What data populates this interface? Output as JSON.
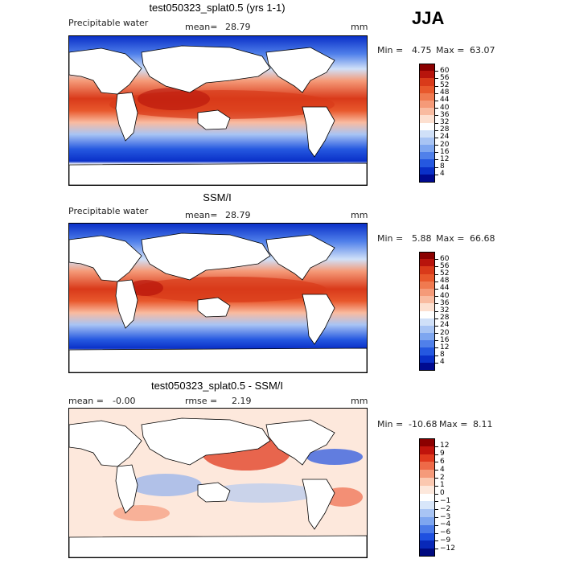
{
  "season": "JJA",
  "panels": [
    {
      "title": "test050323_splat0.5 (yrs 1-1)",
      "variable": "Precipitable water",
      "stat_label": "mean=",
      "stat_value": "28.79",
      "units": "mm",
      "min_label": "Min =",
      "min_value": "4.75",
      "max_label": "Max =",
      "max_value": "63.07",
      "colorbar": {
        "labels": [
          "60",
          "56",
          "52",
          "48",
          "44",
          "40",
          "36",
          "32",
          "28",
          "24",
          "20",
          "16",
          "12",
          "8",
          "4"
        ],
        "colors": [
          "#8b0000",
          "#b8140c",
          "#d93a1a",
          "#e8582c",
          "#f07a50",
          "#f59a78",
          "#f9bba0",
          "#fde0d0",
          "#ffffff",
          "#d0e0f8",
          "#a8c4f4",
          "#7ea6f0",
          "#5080ea",
          "#2558e0",
          "#0a30c8",
          "#000a90"
        ]
      }
    },
    {
      "title": "SSM/I",
      "variable": "Precipitable water",
      "stat_label": "mean=",
      "stat_value": "28.79",
      "units": "mm",
      "min_label": "Min =",
      "min_value": "5.88",
      "max_label": "Max =",
      "max_value": "66.68",
      "colorbar": {
        "labels": [
          "60",
          "56",
          "52",
          "48",
          "44",
          "40",
          "36",
          "32",
          "28",
          "24",
          "20",
          "16",
          "12",
          "8",
          "4"
        ],
        "colors": [
          "#8b0000",
          "#b8140c",
          "#d93a1a",
          "#e8582c",
          "#f07a50",
          "#f59a78",
          "#f9bba0",
          "#fde0d0",
          "#ffffff",
          "#d0e0f8",
          "#a8c4f4",
          "#7ea6f0",
          "#5080ea",
          "#2558e0",
          "#0a30c8",
          "#000a90"
        ]
      }
    },
    {
      "title": "test050323_splat0.5 - SSM/I",
      "stat_label": "mean =",
      "stat_value": "-0.00",
      "stat2_label": "rmse =",
      "stat2_value": "2.19",
      "units": "mm",
      "min_label": "Min =",
      "min_value": "-10.68",
      "max_label": "Max =",
      "max_value": "8.11",
      "colorbar": {
        "labels": [
          "12",
          "9",
          "6",
          "4",
          "2",
          "1",
          "0",
          "−1",
          "−2",
          "−3",
          "−4",
          "−6",
          "−9",
          "−12"
        ],
        "colors": [
          "#8b0000",
          "#c0140c",
          "#e03a1e",
          "#ee6a48",
          "#f59a7a",
          "#fbc8b0",
          "#fde8dc",
          "#ffffff",
          "#d8e6fa",
          "#a8c4f4",
          "#7ea6f0",
          "#4a7ae8",
          "#1e50e0",
          "#0828b8",
          "#000a80"
        ]
      }
    }
  ]
}
